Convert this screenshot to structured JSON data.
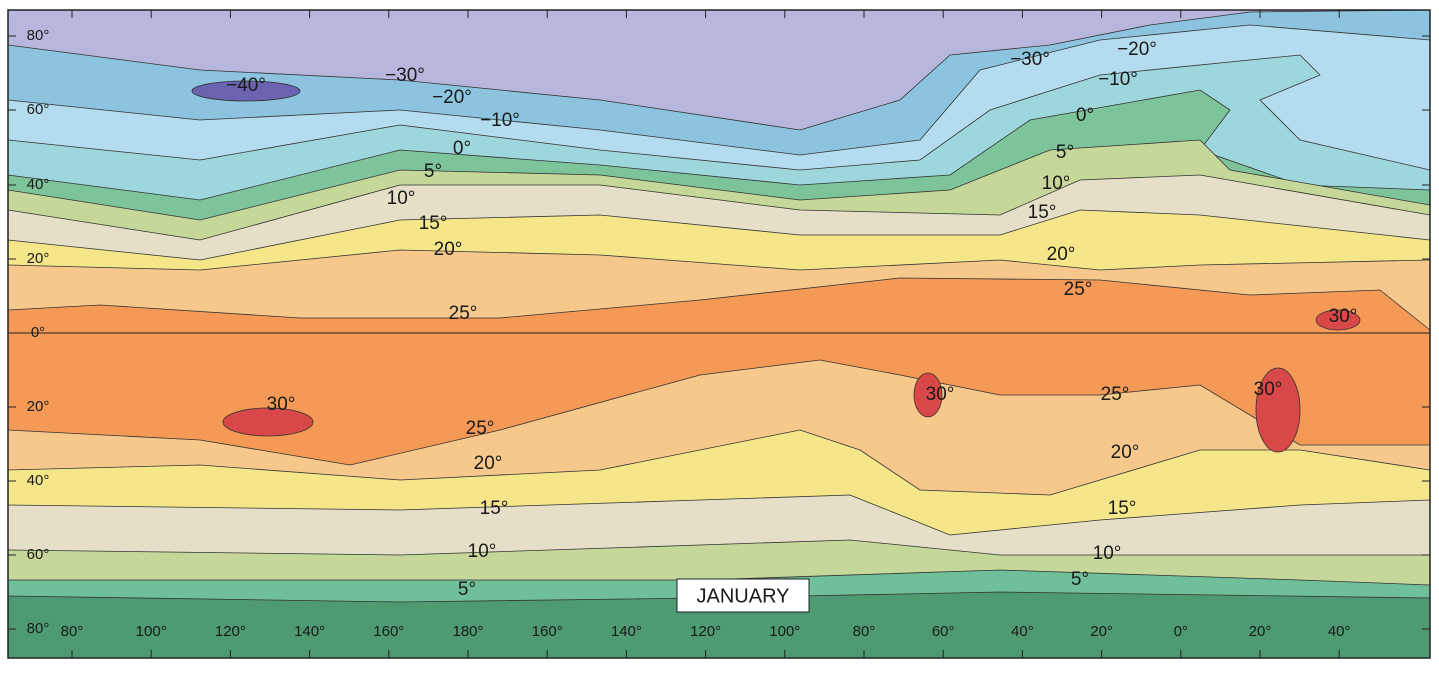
{
  "title": "JANUARY",
  "latitude_labels": [
    "80°",
    "60°",
    "40°",
    "20°",
    "0°",
    "20°",
    "40°",
    "60°",
    "80°"
  ],
  "longitude_labels": [
    "80°",
    "100°",
    "120°",
    "140°",
    "160°",
    "180°",
    "160°",
    "140°",
    "120°",
    "100°",
    "80°",
    "60°",
    "40°",
    "20°",
    "0°",
    "20°",
    "40°"
  ],
  "isotherm_labels": [
    "−40°",
    "−30°",
    "−20°",
    "−10°",
    "0°",
    "5°",
    "10°",
    "15°",
    "20°",
    "25°",
    "30°",
    "25°",
    "20°",
    "15°",
    "10°",
    "5°",
    "−30°",
    "−20°",
    "−10°",
    "0°",
    "5°",
    "10°",
    "15°",
    "20°",
    "25°",
    "30°",
    "30°",
    "30°",
    "25°",
    "20°",
    "15°",
    "10°",
    "5°"
  ]
}
